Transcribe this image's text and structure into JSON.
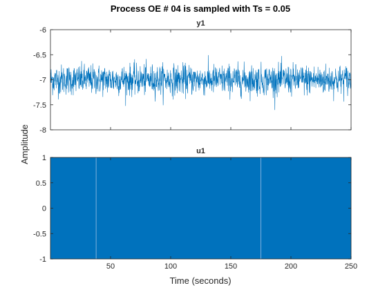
{
  "chart_data": {
    "type": "line",
    "title": "Process OE # 04 is sampled with Ts = 0.05",
    "xlabel": "Time (seconds)",
    "ylabel": "Amplitude",
    "sample_time": 0.05,
    "xlim": [
      0,
      250
    ],
    "xticks": [
      50,
      100,
      150,
      200,
      250
    ],
    "xtick_labels": [
      "50",
      "100",
      "150",
      "200",
      "250"
    ],
    "line_color": "#0072BD",
    "grid": false,
    "panels": [
      {
        "title": "y1",
        "ylim": [
          -8,
          -6
        ],
        "yticks": [
          -6,
          -6.5,
          -7,
          -7.5,
          -8
        ],
        "ytick_labels": [
          "-6",
          "-6.5",
          "-7",
          "-7.5",
          "-8"
        ],
        "series": [
          {
            "kind": "noise",
            "mean": -7.0,
            "std": 0.15,
            "min": -7.7,
            "max": -6.3,
            "x_range": [
              0,
              250
            ]
          }
        ]
      },
      {
        "title": "u1",
        "ylim": [
          -1,
          1
        ],
        "yticks": [
          1,
          0.5,
          0,
          -0.5,
          -1
        ],
        "ytick_labels": [
          "1",
          "0.5",
          "0",
          "-0.5",
          "-1"
        ],
        "series": [
          {
            "kind": "binary_switching",
            "levels": [
              -1,
              1
            ],
            "x_range": [
              0,
              250
            ],
            "visible_gaps": [
              38,
              175
            ]
          }
        ]
      }
    ]
  }
}
